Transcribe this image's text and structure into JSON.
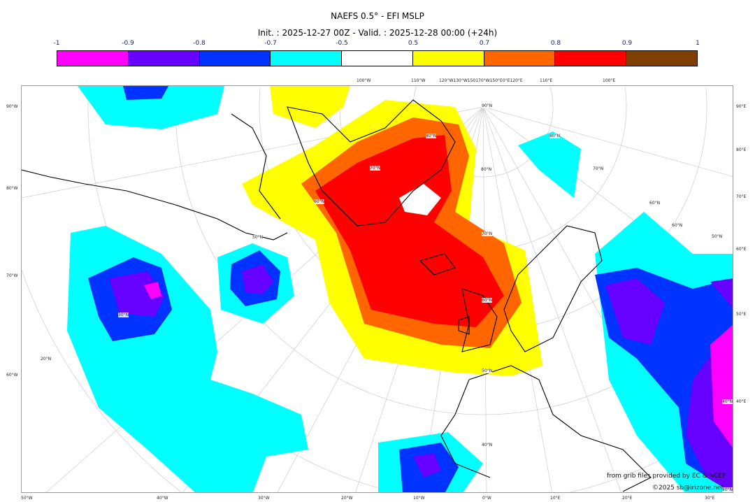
{
  "title": "NAEFS 0.5° - EFI MSLP",
  "subtitle": "Init. : 2025-12-27 00Z - Valid. : 2025-12-28 00:00 (+24h)",
  "colorbar": {
    "ticks": [
      "-1",
      "-0.9",
      "-0.8",
      "-0.7",
      "-0.5",
      "0.5",
      "0.7",
      "0.8",
      "0.9",
      "1"
    ],
    "colors": [
      "#ff00ff",
      "#6600ff",
      "#0033ff",
      "#00ffff",
      "#ffffff",
      "#ffff00",
      "#ff6600",
      "#ff0000",
      "#7f3f00"
    ]
  },
  "axes": {
    "bottom": [
      "50°W",
      "40°W",
      "30°W",
      "20°W",
      "10°W",
      "0°W",
      "10°E",
      "20°E",
      "30°E"
    ],
    "left": [
      "90°W",
      "80°W",
      "70°W",
      "60°W"
    ],
    "right": [
      "90°E",
      "80°E",
      "70°E",
      "60°E",
      "50°E",
      "40°E"
    ],
    "top": [
      "100°W",
      "110°W",
      "120°W130°W150170°W150°E0°E120°E",
      "110°E",
      "100°E"
    ],
    "lat_labels": [
      "90°N",
      "80°N",
      "70°N",
      "60°N",
      "50°N",
      "40°N",
      "30°N",
      "20°N",
      "50°N",
      "60°N",
      "70°N",
      "80°N",
      "70°N",
      "60°N",
      "40°N",
      "30°N",
      "50°N",
      "60°N",
      "80°N"
    ]
  },
  "credits": {
    "source": "from grib files provided by EC & NCEP",
    "copyright": "©2025 sb@irizone.net"
  }
}
